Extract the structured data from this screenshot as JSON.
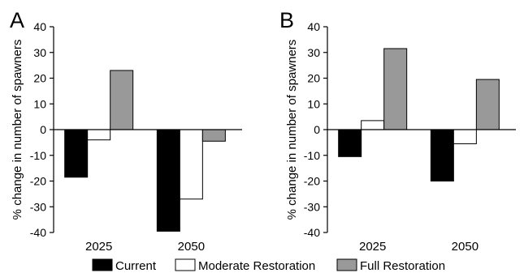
{
  "chart_data": [
    {
      "panel_label": "A",
      "type": "bar",
      "categories": [
        "2025",
        "2050"
      ],
      "ylabel": "% change in number of spawners",
      "ylim": [
        -40,
        40
      ],
      "yticks": [
        40,
        30,
        20,
        10,
        0,
        -10,
        -20,
        -30,
        -40
      ],
      "series": [
        {
          "name": "Current",
          "color": "#000000",
          "values": [
            -18.5,
            -39.5
          ]
        },
        {
          "name": "Moderate Restoration",
          "color": "#ffffff",
          "values": [
            -4,
            -27
          ]
        },
        {
          "name": "Full Restoration",
          "color": "#999999",
          "values": [
            23,
            -4.5
          ]
        }
      ]
    },
    {
      "panel_label": "B",
      "type": "bar",
      "categories": [
        "2025",
        "2050"
      ],
      "ylabel": "% change in number of spawners",
      "ylim": [
        -40,
        40
      ],
      "yticks": [
        40,
        30,
        20,
        10,
        0,
        -10,
        -20,
        -30,
        -40
      ],
      "series": [
        {
          "name": "Current",
          "color": "#000000",
          "values": [
            -10.5,
            -20
          ]
        },
        {
          "name": "Moderate Restoration",
          "color": "#ffffff",
          "values": [
            3.5,
            -5.5
          ]
        },
        {
          "name": "Full Restoration",
          "color": "#999999",
          "values": [
            31.5,
            19.5
          ]
        }
      ]
    }
  ],
  "legend": {
    "placement": "bottom",
    "items": [
      {
        "label": "Current",
        "color": "#000000"
      },
      {
        "label": "Moderate Restoration",
        "color": "#ffffff"
      },
      {
        "label": "Full Restoration",
        "color": "#999999"
      }
    ]
  }
}
